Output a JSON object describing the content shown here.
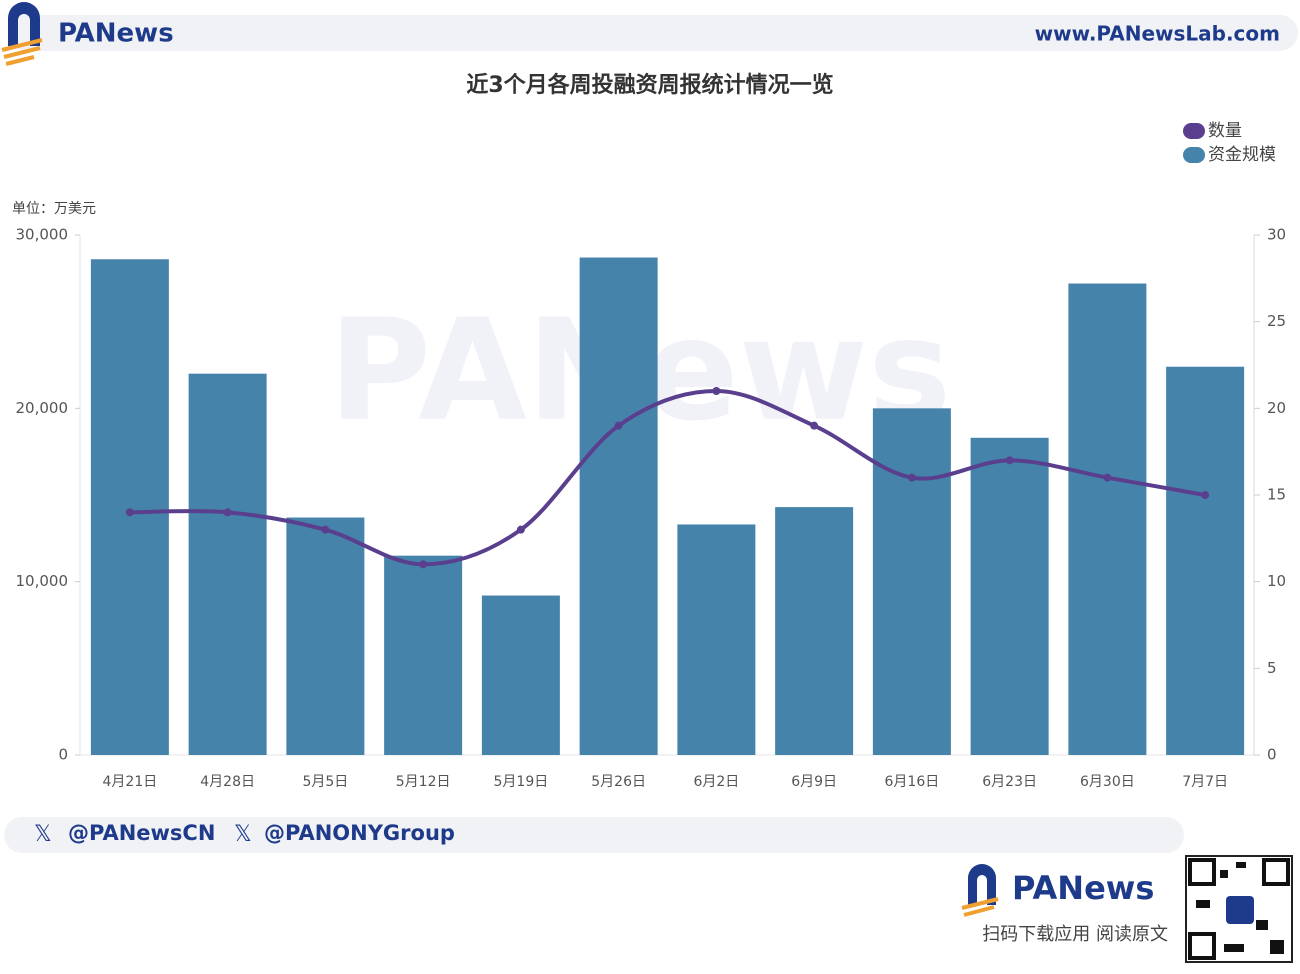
{
  "header": {
    "logo": "PANews",
    "url": "www.PANewsLab.com"
  },
  "chart_data": {
    "type": "bar",
    "title": "近3个月各周投融资周报统计情况一览",
    "unit_label": "单位：万美元",
    "watermark": "PANews",
    "categories": [
      "4月21日",
      "4月28日",
      "5月5日",
      "5月12日",
      "5月19日",
      "5月26日",
      "6月2日",
      "6月9日",
      "6月16日",
      "6月23日",
      "6月30日",
      "7月7日"
    ],
    "series": [
      {
        "name": "数量",
        "type": "line",
        "axis": "y2",
        "color": "#5b3f8f",
        "values": [
          14,
          14,
          13,
          11,
          13,
          19,
          21,
          19,
          16,
          17,
          16,
          15
        ]
      },
      {
        "name": "资金规模",
        "type": "bar",
        "color": "#4683ab",
        "values": [
          28600,
          22000,
          13700,
          11500,
          9200,
          28700,
          13300,
          14300,
          20000,
          18300,
          27200,
          22400
        ]
      }
    ],
    "ylim": [
      0,
      30000
    ],
    "yticks": [
      0,
      {
        "value": 10000,
        "label": "10,000"
      },
      {
        "value": 20000,
        "label": "20,000"
      },
      {
        "value": 30000,
        "label": "30,000"
      }
    ],
    "y2lim": [
      0,
      30
    ],
    "y2ticks": [
      0,
      5,
      10,
      15,
      20,
      25,
      30
    ],
    "legend": "top-right"
  },
  "footer": {
    "handles": [
      "@PANewsCN",
      "@PANONYGroup"
    ],
    "logo": "PANews",
    "cta": "扫码下载应用 阅读原文"
  }
}
